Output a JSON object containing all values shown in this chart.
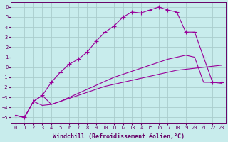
{
  "xlabel": "Windchill (Refroidissement éolien,°C)",
  "background_color": "#c8ecec",
  "grid_color": "#aacccc",
  "line_color": "#990099",
  "xlim": [
    -0.5,
    23.5
  ],
  "ylim": [
    -5.5,
    6.5
  ],
  "xticks": [
    0,
    1,
    2,
    3,
    4,
    5,
    6,
    7,
    8,
    9,
    10,
    11,
    12,
    13,
    14,
    15,
    16,
    17,
    18,
    19,
    20,
    21,
    22,
    23
  ],
  "yticks": [
    -5,
    -4,
    -3,
    -2,
    -1,
    0,
    1,
    2,
    3,
    4,
    5,
    6
  ],
  "line1_x": [
    0,
    1,
    2,
    3,
    4,
    5,
    6,
    7,
    8,
    9,
    10,
    11,
    12,
    13,
    14,
    15,
    16,
    17,
    18,
    19,
    20,
    21,
    22,
    23
  ],
  "line1_y": [
    -4.8,
    -5.0,
    -3.4,
    -3.8,
    -3.7,
    -3.4,
    -3.1,
    -2.8,
    -2.5,
    -2.2,
    -1.9,
    -1.7,
    -1.5,
    -1.3,
    -1.1,
    -0.9,
    -0.7,
    -0.5,
    -0.3,
    -0.2,
    -0.1,
    0.0,
    0.1,
    0.2
  ],
  "line2_x": [
    0,
    1,
    2,
    3,
    4,
    5,
    6,
    7,
    8,
    9,
    10,
    11,
    12,
    13,
    14,
    15,
    16,
    17,
    18,
    19,
    20,
    21,
    22,
    23
  ],
  "line2_y": [
    -4.8,
    -5.0,
    -3.4,
    -2.8,
    -3.7,
    -3.4,
    -3.0,
    -2.6,
    -2.2,
    -1.8,
    -1.4,
    -1.0,
    -0.7,
    -0.4,
    -0.1,
    0.2,
    0.5,
    0.8,
    1.0,
    1.2,
    1.0,
    -1.5,
    -1.5,
    -1.6
  ],
  "line3_x": [
    0,
    1,
    2,
    3,
    4,
    5,
    6,
    7,
    8,
    9,
    10,
    11,
    12,
    13,
    14,
    15,
    16,
    17,
    18,
    19,
    20,
    21,
    22,
    23
  ],
  "line3_y": [
    -4.8,
    -5.0,
    -3.4,
    -2.8,
    -1.5,
    -0.5,
    0.3,
    0.8,
    1.5,
    2.6,
    3.5,
    4.1,
    5.0,
    5.5,
    5.4,
    5.7,
    6.0,
    5.7,
    5.5,
    3.5,
    3.5,
    1.0,
    -1.5,
    -1.5
  ],
  "marker": "+",
  "markersize": 4,
  "tick_fontsize": 5,
  "xlabel_fontsize": 6
}
